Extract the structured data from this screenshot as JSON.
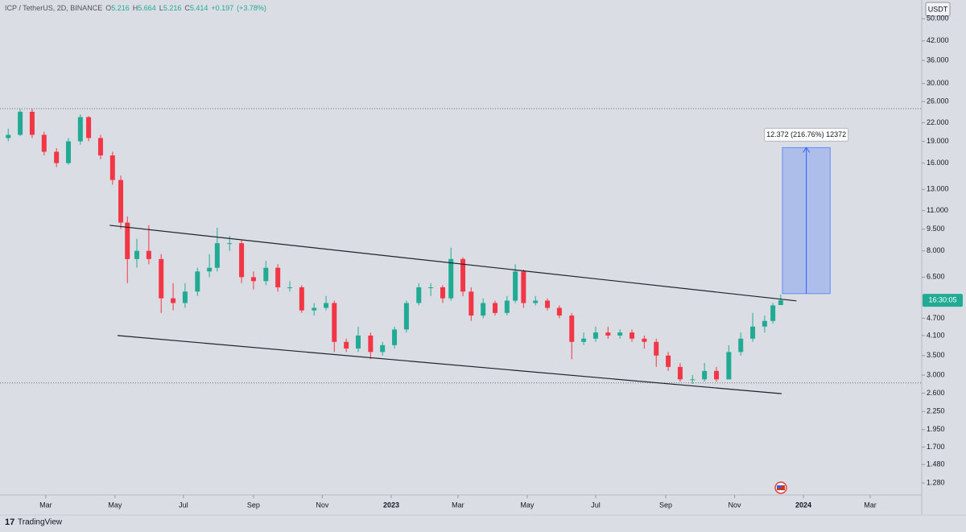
{
  "chart_data": {
    "type": "candlestick",
    "header": {
      "symbol": "ICP / TetherUS, 2D, BINANCE",
      "ohlc": [
        {
          "label": "O",
          "value": 5.216
        },
        {
          "label": "H",
          "value": 5.664
        },
        {
          "label": "L",
          "value": 5.216
        },
        {
          "label": "C",
          "value": 5.414
        }
      ],
      "change": {
        "value": 0.197,
        "label": "+0.197"
      },
      "change_pct": {
        "value": 3.78,
        "label": "(+3.78%)"
      }
    },
    "currency": "USDT",
    "countdown": "16:30:05",
    "log_scale": true,
    "grid": false,
    "up_color": "#22ab94",
    "down_color": "#f23645",
    "ylim": [
      1.164,
      58
    ],
    "yticks": [
      {
        "value": 1.28,
        "label": "1.280"
      },
      {
        "value": 1.48,
        "label": "1.480"
      },
      {
        "value": 1.7,
        "label": "1.700"
      },
      {
        "value": 1.95,
        "label": "1.950"
      },
      {
        "value": 2.25,
        "label": "2.250"
      },
      {
        "value": 2.6,
        "label": "2.600"
      },
      {
        "value": 3,
        "label": "3.000"
      },
      {
        "value": 3.5,
        "label": "3.500"
      },
      {
        "value": 4.1,
        "label": "4.100"
      },
      {
        "value": 4.7,
        "label": "4.700"
      },
      {
        "value": 6.5,
        "label": "6.500"
      },
      {
        "value": 8,
        "label": "8.000"
      },
      {
        "value": 9.5,
        "label": "9.500"
      },
      {
        "value": 11,
        "label": "11.000"
      },
      {
        "value": 13,
        "label": "13.000"
      },
      {
        "value": 16,
        "label": "16.000"
      },
      {
        "value": 19,
        "label": "19.000"
      },
      {
        "value": 22,
        "label": "22.000"
      },
      {
        "value": 26,
        "label": "26.000"
      },
      {
        "value": 30,
        "label": "30.000"
      },
      {
        "value": 36,
        "label": "36.000"
      },
      {
        "value": 42,
        "label": "42.000"
      },
      {
        "value": 50,
        "label": "50.000"
      }
    ],
    "xlim": [
      2022.051,
      2024.287
    ],
    "xticks": [
      {
        "value": 2022.162,
        "label": "Mar"
      },
      {
        "value": 2022.33,
        "label": "May"
      },
      {
        "value": 2022.496,
        "label": "Jul"
      },
      {
        "value": 2022.666,
        "label": "Sep"
      },
      {
        "value": 2022.833,
        "label": "Nov"
      },
      2023,
      {
        "value": 2023.162,
        "label": "Mar"
      },
      {
        "value": 2023.33,
        "label": "May"
      },
      {
        "value": 2023.496,
        "label": "Jul"
      },
      {
        "value": 2023.666,
        "label": "Sep"
      },
      {
        "value": 2023.833,
        "label": "Nov"
      },
      2024,
      {
        "value": 2024.162,
        "label": "Mar"
      }
    ],
    "x": [
      2022.071,
      2022.1,
      2022.129,
      2022.158,
      2022.188,
      2022.217,
      2022.246,
      2022.266,
      2022.295,
      2022.324,
      2022.344,
      2022.36,
      2022.383,
      2022.412,
      2022.442,
      2022.471,
      2022.5,
      2022.53,
      2022.559,
      2022.578,
      2022.608,
      2022.637,
      2022.666,
      2022.696,
      2022.725,
      2022.754,
      2022.783,
      2022.813,
      2022.842,
      2022.862,
      2022.891,
      2022.92,
      2022.95,
      2022.979,
      2023.008,
      2023.037,
      2023.067,
      2023.096,
      2023.125,
      2023.145,
      2023.174,
      2023.194,
      2023.223,
      2023.252,
      2023.281,
      2023.301,
      2023.321,
      2023.35,
      2023.379,
      2023.408,
      2023.438,
      2023.467,
      2023.496,
      2023.526,
      2023.555,
      2023.584,
      2023.614,
      2023.643,
      2023.672,
      2023.701,
      2023.731,
      2023.76,
      2023.789,
      2023.819,
      2023.848,
      2023.877,
      2023.906,
      2023.926,
      2023.945
    ],
    "series": [
      {
        "name": "ICP / TetherUS",
        "ohlc": [
          [
            19.5,
            21,
            19,
            20
          ],
          [
            20,
            24.5,
            19.8,
            24
          ],
          [
            24,
            24.5,
            19.5,
            20
          ],
          [
            20,
            20.5,
            17,
            17.5
          ],
          [
            17.5,
            18,
            15.5,
            16
          ],
          [
            16,
            19.5,
            15.8,
            19
          ],
          [
            19,
            23.5,
            18.5,
            23
          ],
          [
            23,
            23.2,
            19,
            19.5
          ],
          [
            19.5,
            20,
            16.5,
            17
          ],
          [
            17,
            17.5,
            13.5,
            14
          ],
          [
            14,
            14.5,
            9.5,
            10
          ],
          [
            10,
            10.5,
            6.2,
            7.5
          ],
          [
            7.5,
            8.8,
            7,
            8
          ],
          [
            8,
            9.8,
            7.2,
            7.5
          ],
          [
            7.5,
            7.8,
            4.9,
            5.5
          ],
          [
            5.5,
            6.2,
            5,
            5.3
          ],
          [
            5.3,
            6.2,
            5.1,
            5.8
          ],
          [
            5.8,
            7,
            5.6,
            6.8
          ],
          [
            6.8,
            7.8,
            6.5,
            7
          ],
          [
            7,
            9.6,
            6.8,
            8.5
          ],
          [
            8.5,
            9,
            8,
            8.5
          ],
          [
            8.5,
            8.7,
            6.2,
            6.5
          ],
          [
            6.5,
            6.8,
            5.9,
            6.3
          ],
          [
            6.3,
            7.4,
            6.1,
            7
          ],
          [
            7,
            7.2,
            5.8,
            6
          ],
          [
            6,
            6.3,
            5.8,
            6
          ],
          [
            6,
            6.1,
            4.9,
            5
          ],
          [
            5,
            5.3,
            4.8,
            5.1
          ],
          [
            5.1,
            5.6,
            5,
            5.3
          ],
          [
            5.3,
            5.4,
            3.6,
            3.9
          ],
          [
            3.9,
            4,
            3.6,
            3.7
          ],
          [
            3.7,
            4.4,
            3.6,
            4.1
          ],
          [
            4.1,
            4.2,
            3.4,
            3.6
          ],
          [
            3.6,
            3.9,
            3.5,
            3.8
          ],
          [
            3.8,
            4.4,
            3.7,
            4.3
          ],
          [
            4.3,
            5.4,
            4.2,
            5.3
          ],
          [
            5.3,
            6.2,
            5.2,
            6
          ],
          [
            6,
            6.2,
            5.6,
            6
          ],
          [
            6,
            6.1,
            5.3,
            5.5
          ],
          [
            5.5,
            8.2,
            5.4,
            7.5
          ],
          [
            7.5,
            7.6,
            5.6,
            5.8
          ],
          [
            5.8,
            6,
            4.6,
            4.8
          ],
          [
            4.8,
            5.5,
            4.7,
            5.3
          ],
          [
            5.3,
            5.4,
            4.8,
            4.9
          ],
          [
            4.9,
            5.6,
            4.8,
            5.4
          ],
          [
            5.4,
            7.2,
            5.3,
            6.8
          ],
          [
            6.8,
            6.9,
            5.1,
            5.3
          ],
          [
            5.3,
            5.6,
            5.2,
            5.4
          ],
          [
            5.4,
            5.5,
            5,
            5.1
          ],
          [
            5.1,
            5.2,
            4.7,
            4.8
          ],
          [
            4.8,
            4.9,
            3.4,
            3.9
          ],
          [
            3.9,
            4.2,
            3.8,
            4
          ],
          [
            4,
            4.4,
            3.9,
            4.2
          ],
          [
            4.2,
            4.4,
            4,
            4.1
          ],
          [
            4.1,
            4.3,
            4,
            4.2
          ],
          [
            4.2,
            4.3,
            3.9,
            4
          ],
          [
            4,
            4.1,
            3.7,
            3.9
          ],
          [
            3.9,
            4,
            3.2,
            3.5
          ],
          [
            3.5,
            3.6,
            3.1,
            3.2
          ],
          [
            3.2,
            3.3,
            2.85,
            2.9
          ],
          [
            2.9,
            3,
            2.8,
            2.9
          ],
          [
            2.9,
            3.3,
            2.85,
            3.1
          ],
          [
            3.1,
            3.2,
            2.85,
            2.9
          ],
          [
            2.9,
            3.8,
            2.9,
            3.6
          ],
          [
            3.6,
            4.2,
            3.5,
            4
          ],
          [
            4,
            4.9,
            3.9,
            4.4
          ],
          [
            4.4,
            4.8,
            4.2,
            4.6
          ],
          [
            4.6,
            5.3,
            4.5,
            5.2
          ],
          [
            5.216,
            5.664,
            5.216,
            5.414
          ]
        ]
      }
    ],
    "trendlines": [
      {
        "x": [
          2022.317,
          2023.983
        ],
        "y": [
          9.79,
          5.39
        ],
        "color": "#1e222d"
      },
      {
        "x": [
          2022.336,
          2023.947
        ],
        "y": [
          4.1,
          2.59
        ],
        "color": "#1e222d"
      }
    ],
    "horizontal_lines": [
      24.6,
      2.82
    ],
    "measure": {
      "x": [
        2023.949,
        2024.065
      ],
      "from": 5.708,
      "to": 18.08,
      "label": "12.372 (216.76%) 12372",
      "color": "#2962ff"
    },
    "brand": "TradingView"
  }
}
